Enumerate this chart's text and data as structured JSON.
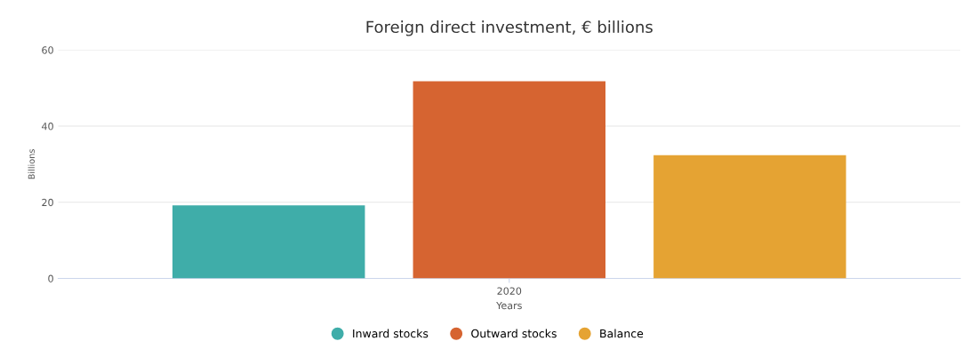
{
  "chart_data": {
    "type": "bar",
    "title": "Foreign direct investment, € billions",
    "xlabel": "Years",
    "ylabel": "Billions",
    "categories": [
      "2020"
    ],
    "series": [
      {
        "name": "Inward stocks",
        "color": "#3fada9",
        "values": [
          19.2
        ]
      },
      {
        "name": "Outward stocks",
        "color": "#d66431",
        "values": [
          51.8
        ]
      },
      {
        "name": "Balance",
        "color": "#e5a333",
        "values": [
          32.4
        ]
      }
    ],
    "ylim": [
      0,
      60
    ],
    "yticks": [
      0,
      20,
      40,
      60
    ],
    "grid": "y",
    "legend": "bottom"
  }
}
